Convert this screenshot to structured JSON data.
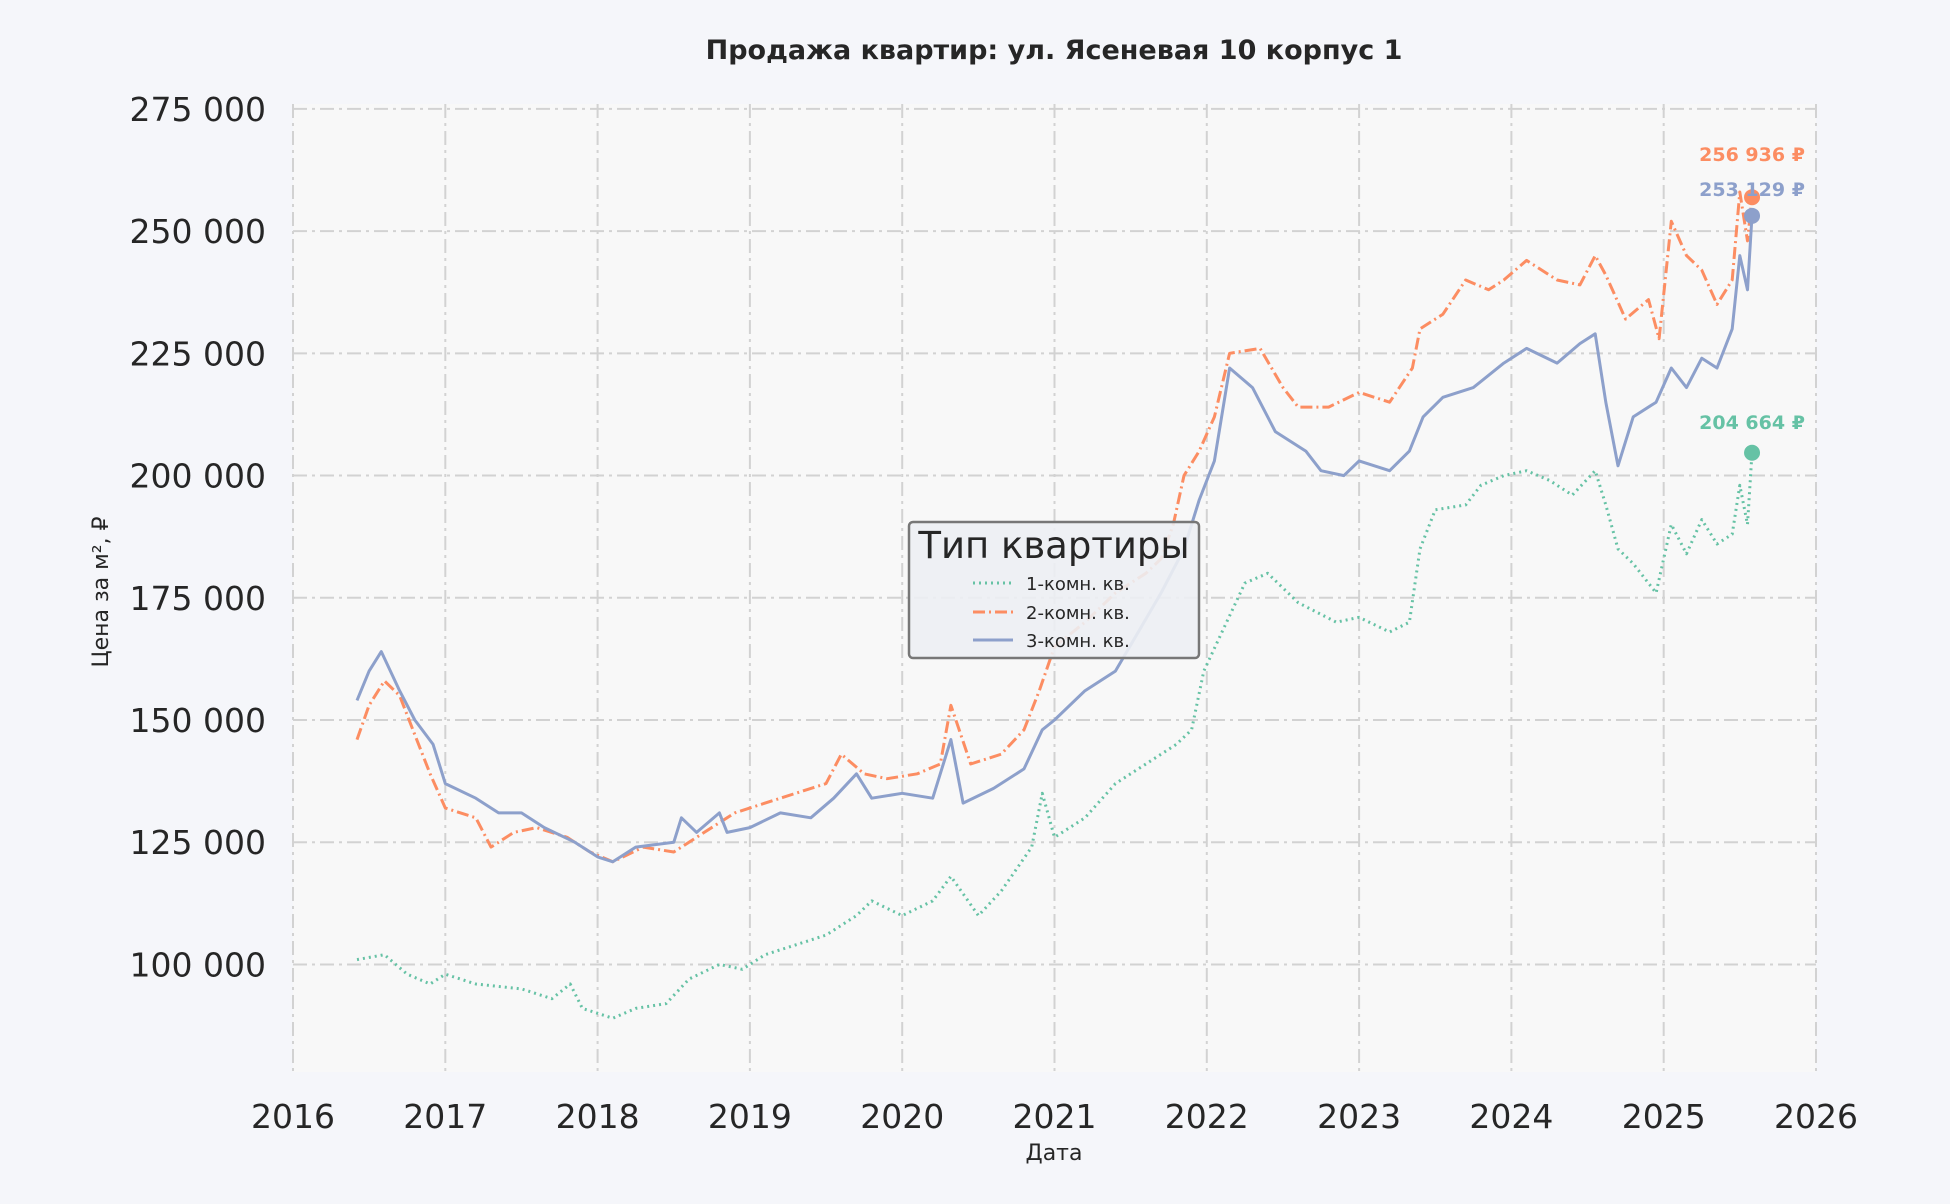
{
  "chart_data": {
    "type": "line",
    "title": "Продажа квартир: ул. Ясеневая 10 корпус 1",
    "xlabel": "Дата",
    "ylabel": "Цена за м², ₽",
    "xlim": [
      2016,
      2026
    ],
    "ylim": [
      78000,
      276000
    ],
    "xticks": [
      2016,
      2017,
      2018,
      2019,
      2020,
      2021,
      2022,
      2023,
      2024,
      2025,
      2026
    ],
    "xtick_labels": [
      "2016",
      "2017",
      "2018",
      "2019",
      "2020",
      "2021",
      "2022",
      "2023",
      "2024",
      "2025",
      "2026"
    ],
    "yticks": [
      100000,
      125000,
      150000,
      175000,
      200000,
      225000,
      250000,
      275000
    ],
    "ytick_labels": [
      "100 000",
      "125 000",
      "150 000",
      "175 000",
      "200 000",
      "225 000",
      "250 000",
      "275 000"
    ],
    "grid": true,
    "legend": {
      "title": "Тип квартиры",
      "placement": "center",
      "labels": [
        "1-комн. кв.",
        "2-комн. кв.",
        "3-комн. кв."
      ]
    },
    "series": [
      {
        "name": "1-комн. кв.",
        "color": "#66c2a5",
        "style": "dotted",
        "end_label": "204 664 ₽",
        "end_value": 204664,
        "points": [
          [
            2016.42,
            101000
          ],
          [
            2016.6,
            102000
          ],
          [
            2016.75,
            98000
          ],
          [
            2016.9,
            96000
          ],
          [
            2017.0,
            98000
          ],
          [
            2017.2,
            96000
          ],
          [
            2017.5,
            95000
          ],
          [
            2017.7,
            93000
          ],
          [
            2017.82,
            96000
          ],
          [
            2017.9,
            91000
          ],
          [
            2018.1,
            89000
          ],
          [
            2018.25,
            91000
          ],
          [
            2018.45,
            92000
          ],
          [
            2018.6,
            97000
          ],
          [
            2018.8,
            100000
          ],
          [
            2018.95,
            99000
          ],
          [
            2019.1,
            102000
          ],
          [
            2019.3,
            104000
          ],
          [
            2019.5,
            106000
          ],
          [
            2019.7,
            110000
          ],
          [
            2019.8,
            113000
          ],
          [
            2020.0,
            110000
          ],
          [
            2020.2,
            113000
          ],
          [
            2020.32,
            118000
          ],
          [
            2020.5,
            110000
          ],
          [
            2020.65,
            115000
          ],
          [
            2020.85,
            124000
          ],
          [
            2020.92,
            135000
          ],
          [
            2021.0,
            126000
          ],
          [
            2021.2,
            130000
          ],
          [
            2021.4,
            137000
          ],
          [
            2021.6,
            141000
          ],
          [
            2021.8,
            145000
          ],
          [
            2021.9,
            148000
          ],
          [
            2021.98,
            160000
          ],
          [
            2022.1,
            168000
          ],
          [
            2022.25,
            178000
          ],
          [
            2022.4,
            180000
          ],
          [
            2022.6,
            174000
          ],
          [
            2022.85,
            170000
          ],
          [
            2023.0,
            171000
          ],
          [
            2023.2,
            168000
          ],
          [
            2023.33,
            170000
          ],
          [
            2023.4,
            185000
          ],
          [
            2023.5,
            193000
          ],
          [
            2023.7,
            194000
          ],
          [
            2023.8,
            198000
          ],
          [
            2023.95,
            200000
          ],
          [
            2024.1,
            201000
          ],
          [
            2024.25,
            199000
          ],
          [
            2024.4,
            196000
          ],
          [
            2024.55,
            201000
          ],
          [
            2024.62,
            194000
          ],
          [
            2024.7,
            185000
          ],
          [
            2024.8,
            182000
          ],
          [
            2024.95,
            176000
          ],
          [
            2025.05,
            190000
          ],
          [
            2025.15,
            184000
          ],
          [
            2025.25,
            191000
          ],
          [
            2025.35,
            186000
          ],
          [
            2025.45,
            188000
          ],
          [
            2025.5,
            198000
          ],
          [
            2025.55,
            190000
          ],
          [
            2025.58,
            204664
          ]
        ]
      },
      {
        "name": "2-комн. кв.",
        "color": "#fc8d62",
        "style": "dash-dot",
        "end_label": "256 936 ₽",
        "end_value": 256936,
        "points": [
          [
            2016.42,
            146000
          ],
          [
            2016.5,
            153000
          ],
          [
            2016.6,
            158000
          ],
          [
            2016.7,
            155000
          ],
          [
            2016.8,
            147000
          ],
          [
            2016.9,
            139000
          ],
          [
            2017.0,
            132000
          ],
          [
            2017.2,
            130000
          ],
          [
            2017.3,
            124000
          ],
          [
            2017.45,
            127000
          ],
          [
            2017.6,
            128000
          ],
          [
            2017.8,
            126000
          ],
          [
            2017.95,
            123000
          ],
          [
            2018.1,
            121000
          ],
          [
            2018.3,
            124000
          ],
          [
            2018.5,
            123000
          ],
          [
            2018.7,
            127000
          ],
          [
            2018.9,
            131000
          ],
          [
            2019.1,
            133000
          ],
          [
            2019.3,
            135000
          ],
          [
            2019.5,
            137000
          ],
          [
            2019.6,
            143000
          ],
          [
            2019.75,
            139000
          ],
          [
            2019.9,
            138000
          ],
          [
            2020.1,
            139000
          ],
          [
            2020.25,
            141000
          ],
          [
            2020.32,
            153000
          ],
          [
            2020.45,
            141000
          ],
          [
            2020.65,
            143000
          ],
          [
            2020.8,
            148000
          ],
          [
            2020.9,
            156000
          ],
          [
            2021.0,
            165000
          ],
          [
            2021.2,
            170000
          ],
          [
            2021.4,
            176000
          ],
          [
            2021.6,
            180000
          ],
          [
            2021.7,
            183000
          ],
          [
            2021.78,
            190000
          ],
          [
            2021.85,
            200000
          ],
          [
            2021.95,
            205000
          ],
          [
            2022.05,
            212000
          ],
          [
            2022.15,
            225000
          ],
          [
            2022.35,
            226000
          ],
          [
            2022.5,
            218000
          ],
          [
            2022.6,
            214000
          ],
          [
            2022.8,
            214000
          ],
          [
            2023.0,
            217000
          ],
          [
            2023.2,
            215000
          ],
          [
            2023.35,
            222000
          ],
          [
            2023.4,
            230000
          ],
          [
            2023.55,
            233000
          ],
          [
            2023.7,
            240000
          ],
          [
            2023.85,
            238000
          ],
          [
            2023.95,
            240000
          ],
          [
            2024.1,
            244000
          ],
          [
            2024.3,
            240000
          ],
          [
            2024.45,
            239000
          ],
          [
            2024.55,
            245000
          ],
          [
            2024.62,
            241000
          ],
          [
            2024.75,
            232000
          ],
          [
            2024.9,
            236000
          ],
          [
            2024.97,
            228000
          ],
          [
            2025.05,
            252000
          ],
          [
            2025.15,
            245000
          ],
          [
            2025.25,
            242000
          ],
          [
            2025.35,
            235000
          ],
          [
            2025.45,
            240000
          ],
          [
            2025.5,
            258000
          ],
          [
            2025.55,
            248000
          ],
          [
            2025.58,
            256936
          ]
        ]
      },
      {
        "name": "3-комн. кв.",
        "color": "#8da0cb",
        "style": "solid",
        "end_label": "253 129 ₽",
        "end_value": 253129,
        "points": [
          [
            2016.42,
            154000
          ],
          [
            2016.5,
            160000
          ],
          [
            2016.58,
            164000
          ],
          [
            2016.7,
            156000
          ],
          [
            2016.8,
            150000
          ],
          [
            2016.92,
            145000
          ],
          [
            2017.0,
            137000
          ],
          [
            2017.2,
            134000
          ],
          [
            2017.35,
            131000
          ],
          [
            2017.5,
            131000
          ],
          [
            2017.65,
            128000
          ],
          [
            2017.85,
            125000
          ],
          [
            2018.0,
            122000
          ],
          [
            2018.1,
            121000
          ],
          [
            2018.25,
            124000
          ],
          [
            2018.5,
            125000
          ],
          [
            2018.55,
            130000
          ],
          [
            2018.65,
            127000
          ],
          [
            2018.8,
            131000
          ],
          [
            2018.85,
            127000
          ],
          [
            2019.0,
            128000
          ],
          [
            2019.2,
            131000
          ],
          [
            2019.4,
            130000
          ],
          [
            2019.55,
            134000
          ],
          [
            2019.7,
            139000
          ],
          [
            2019.8,
            134000
          ],
          [
            2020.0,
            135000
          ],
          [
            2020.2,
            134000
          ],
          [
            2020.32,
            146000
          ],
          [
            2020.4,
            133000
          ],
          [
            2020.6,
            136000
          ],
          [
            2020.8,
            140000
          ],
          [
            2020.92,
            148000
          ],
          [
            2021.0,
            150000
          ],
          [
            2021.2,
            156000
          ],
          [
            2021.4,
            160000
          ],
          [
            2021.55,
            168000
          ],
          [
            2021.7,
            176000
          ],
          [
            2021.85,
            185000
          ],
          [
            2021.95,
            195000
          ],
          [
            2022.05,
            203000
          ],
          [
            2022.15,
            222000
          ],
          [
            2022.3,
            218000
          ],
          [
            2022.45,
            209000
          ],
          [
            2022.65,
            205000
          ],
          [
            2022.75,
            201000
          ],
          [
            2022.9,
            200000
          ],
          [
            2023.0,
            203000
          ],
          [
            2023.2,
            201000
          ],
          [
            2023.33,
            205000
          ],
          [
            2023.42,
            212000
          ],
          [
            2023.55,
            216000
          ],
          [
            2023.75,
            218000
          ],
          [
            2023.95,
            223000
          ],
          [
            2024.1,
            226000
          ],
          [
            2024.3,
            223000
          ],
          [
            2024.45,
            227000
          ],
          [
            2024.55,
            229000
          ],
          [
            2024.62,
            215000
          ],
          [
            2024.7,
            202000
          ],
          [
            2024.8,
            212000
          ],
          [
            2024.95,
            215000
          ],
          [
            2025.05,
            222000
          ],
          [
            2025.15,
            218000
          ],
          [
            2025.25,
            224000
          ],
          [
            2025.35,
            222000
          ],
          [
            2025.45,
            230000
          ],
          [
            2025.5,
            245000
          ],
          [
            2025.55,
            238000
          ],
          [
            2025.58,
            253129
          ]
        ]
      }
    ]
  }
}
